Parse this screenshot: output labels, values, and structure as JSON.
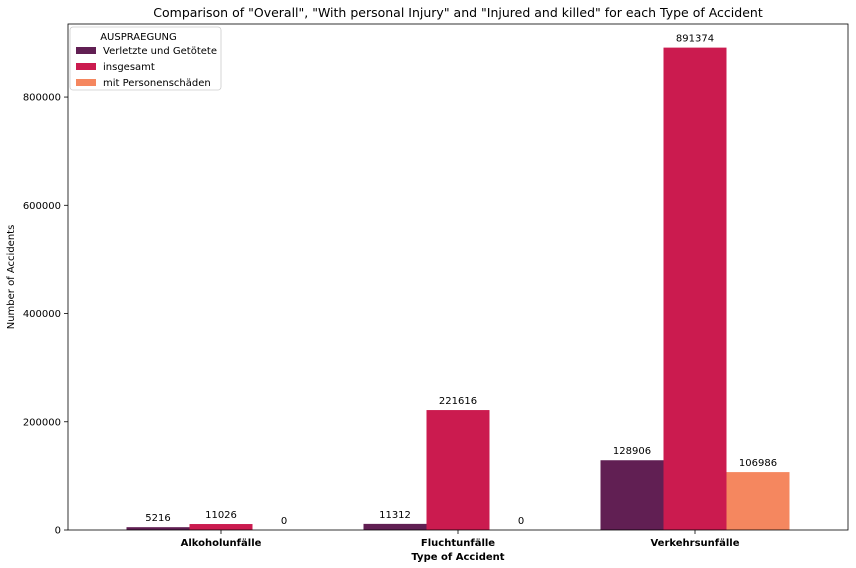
{
  "chart_data": {
    "type": "bar",
    "title": "Comparison of \"Overall\", \"With personal Injury\" and \"Injured and killed\" for each Type of Accident",
    "xlabel": "Type of Accident",
    "ylabel": "Number of Accidents",
    "categories": [
      "Alkoholunfälle",
      "Fluchtunfälle",
      "Verkehrsunfälle"
    ],
    "series": [
      {
        "name": "Verletzte und Getötete",
        "color": "#611f53",
        "values": [
          5216,
          11312,
          128906
        ]
      },
      {
        "name": "insgesamt",
        "color": "#cb1b4f",
        "values": [
          11026,
          221616,
          891374
        ]
      },
      {
        "name": "mit Personenschäden",
        "color": "#f5875f",
        "values": [
          0,
          0,
          106986
        ]
      }
    ],
    "ylim": [
      0,
      935000
    ],
    "yticks": [
      0,
      200000,
      400000,
      600000,
      800000
    ],
    "ytick_labels": [
      "0",
      "200000",
      "400000",
      "600000",
      "800000"
    ],
    "legend": {
      "title": "AUSPRAEGUNG",
      "position": "top-left"
    },
    "grid": false
  }
}
